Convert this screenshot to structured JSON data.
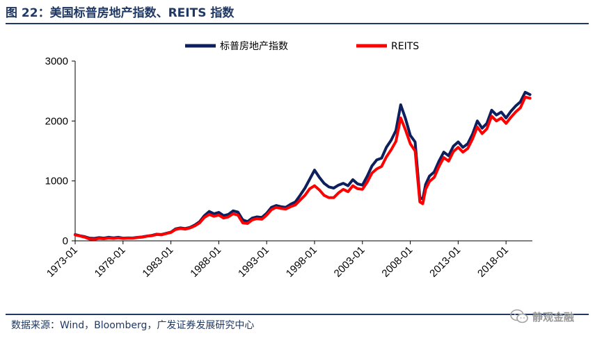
{
  "figure": {
    "title": "图 22：美国标普房地产指数、REITS 指数",
    "source": "数据来源：Wind，Bloomberg，广发证券发展研究中心",
    "watermark": "静观金融"
  },
  "chart_data": {
    "type": "line",
    "title": "",
    "xlabel": "",
    "ylabel": "",
    "ylim": [
      0,
      3000
    ],
    "yticks": [
      "0",
      "1000",
      "2000",
      "3000"
    ],
    "xticks": [
      "1973-01",
      "1978-01",
      "1983-01",
      "1988-01",
      "1993-01",
      "1998-01",
      "2003-01",
      "2008-01",
      "2013-01",
      "2018-01"
    ],
    "x_range": [
      1973.0,
      2020.75
    ],
    "legend_position": "top-center",
    "series": [
      {
        "name": "标普房地产指数",
        "color": "#0d1f5c",
        "points": [
          [
            1973.0,
            105
          ],
          [
            1973.5,
            85
          ],
          [
            1974.0,
            70
          ],
          [
            1974.5,
            45
          ],
          [
            1975.0,
            40
          ],
          [
            1975.5,
            55
          ],
          [
            1976.0,
            45
          ],
          [
            1976.5,
            60
          ],
          [
            1977.0,
            50
          ],
          [
            1977.5,
            60
          ],
          [
            1978.0,
            45
          ],
          [
            1978.5,
            50
          ],
          [
            1979.0,
            48
          ],
          [
            1979.5,
            58
          ],
          [
            1980.0,
            65
          ],
          [
            1980.5,
            80
          ],
          [
            1981.0,
            90
          ],
          [
            1981.5,
            110
          ],
          [
            1982.0,
            105
          ],
          [
            1982.5,
            125
          ],
          [
            1983.0,
            145
          ],
          [
            1983.5,
            200
          ],
          [
            1984.0,
            215
          ],
          [
            1984.5,
            205
          ],
          [
            1985.0,
            225
          ],
          [
            1985.5,
            265
          ],
          [
            1986.0,
            320
          ],
          [
            1986.5,
            420
          ],
          [
            1987.0,
            490
          ],
          [
            1987.5,
            450
          ],
          [
            1988.0,
            475
          ],
          [
            1988.5,
            420
          ],
          [
            1989.0,
            440
          ],
          [
            1989.5,
            500
          ],
          [
            1990.0,
            480
          ],
          [
            1990.5,
            350
          ],
          [
            1991.0,
            320
          ],
          [
            1991.5,
            380
          ],
          [
            1992.0,
            400
          ],
          [
            1992.5,
            390
          ],
          [
            1993.0,
            460
          ],
          [
            1993.5,
            560
          ],
          [
            1994.0,
            590
          ],
          [
            1994.5,
            570
          ],
          [
            1995.0,
            560
          ],
          [
            1995.5,
            610
          ],
          [
            1996.0,
            650
          ],
          [
            1996.5,
            760
          ],
          [
            1997.0,
            880
          ],
          [
            1997.5,
            1030
          ],
          [
            1998.0,
            1180
          ],
          [
            1998.5,
            1060
          ],
          [
            1999.0,
            960
          ],
          [
            1999.5,
            900
          ],
          [
            2000.0,
            880
          ],
          [
            2000.5,
            930
          ],
          [
            2001.0,
            960
          ],
          [
            2001.5,
            920
          ],
          [
            2002.0,
            1020
          ],
          [
            2002.5,
            950
          ],
          [
            2003.0,
            930
          ],
          [
            2003.5,
            1080
          ],
          [
            2004.0,
            1250
          ],
          [
            2004.5,
            1350
          ],
          [
            2005.0,
            1380
          ],
          [
            2005.5,
            1560
          ],
          [
            2006.0,
            1680
          ],
          [
            2006.5,
            1840
          ],
          [
            2007.0,
            2270
          ],
          [
            2007.5,
            2040
          ],
          [
            2008.0,
            1760
          ],
          [
            2008.5,
            1650
          ],
          [
            2009.0,
            720
          ],
          [
            2009.3,
            700
          ],
          [
            2009.6,
            940
          ],
          [
            2010.0,
            1080
          ],
          [
            2010.5,
            1150
          ],
          [
            2011.0,
            1330
          ],
          [
            2011.5,
            1480
          ],
          [
            2012.0,
            1420
          ],
          [
            2012.5,
            1580
          ],
          [
            2013.0,
            1650
          ],
          [
            2013.5,
            1560
          ],
          [
            2014.0,
            1620
          ],
          [
            2014.5,
            1780
          ],
          [
            2015.0,
            2000
          ],
          [
            2015.5,
            1880
          ],
          [
            2016.0,
            1960
          ],
          [
            2016.5,
            2180
          ],
          [
            2017.0,
            2100
          ],
          [
            2017.5,
            2150
          ],
          [
            2018.0,
            2050
          ],
          [
            2018.5,
            2160
          ],
          [
            2019.0,
            2250
          ],
          [
            2019.5,
            2320
          ],
          [
            2020.0,
            2480
          ],
          [
            2020.5,
            2440
          ]
        ]
      },
      {
        "name": "REITS",
        "color": "#ff0000",
        "points": [
          [
            1973.0,
            100
          ],
          [
            1973.5,
            80
          ],
          [
            1974.0,
            60
          ],
          [
            1974.5,
            30
          ],
          [
            1975.0,
            25
          ],
          [
            1975.5,
            40
          ],
          [
            1976.0,
            35
          ],
          [
            1976.5,
            48
          ],
          [
            1977.0,
            40
          ],
          [
            1977.5,
            50
          ],
          [
            1978.0,
            40
          ],
          [
            1978.5,
            45
          ],
          [
            1979.0,
            45
          ],
          [
            1979.5,
            55
          ],
          [
            1980.0,
            60
          ],
          [
            1980.5,
            78
          ],
          [
            1981.0,
            85
          ],
          [
            1981.5,
            105
          ],
          [
            1982.0,
            100
          ],
          [
            1982.5,
            120
          ],
          [
            1983.0,
            140
          ],
          [
            1983.5,
            190
          ],
          [
            1984.0,
            205
          ],
          [
            1984.5,
            195
          ],
          [
            1985.0,
            215
          ],
          [
            1985.5,
            250
          ],
          [
            1986.0,
            300
          ],
          [
            1986.5,
            390
          ],
          [
            1987.0,
            440
          ],
          [
            1987.5,
            410
          ],
          [
            1988.0,
            430
          ],
          [
            1988.5,
            380
          ],
          [
            1989.0,
            400
          ],
          [
            1989.5,
            450
          ],
          [
            1990.0,
            430
          ],
          [
            1990.5,
            300
          ],
          [
            1991.0,
            290
          ],
          [
            1991.5,
            350
          ],
          [
            1992.0,
            370
          ],
          [
            1992.5,
            360
          ],
          [
            1993.0,
            430
          ],
          [
            1993.5,
            520
          ],
          [
            1994.0,
            560
          ],
          [
            1994.5,
            540
          ],
          [
            1995.0,
            530
          ],
          [
            1995.5,
            570
          ],
          [
            1996.0,
            600
          ],
          [
            1996.5,
            680
          ],
          [
            1997.0,
            760
          ],
          [
            1997.5,
            870
          ],
          [
            1998.0,
            920
          ],
          [
            1998.5,
            850
          ],
          [
            1999.0,
            760
          ],
          [
            1999.5,
            720
          ],
          [
            2000.0,
            720
          ],
          [
            2000.5,
            800
          ],
          [
            2001.0,
            860
          ],
          [
            2001.5,
            820
          ],
          [
            2002.0,
            920
          ],
          [
            2002.5,
            870
          ],
          [
            2003.0,
            860
          ],
          [
            2003.5,
            980
          ],
          [
            2004.0,
            1130
          ],
          [
            2004.5,
            1200
          ],
          [
            2005.0,
            1240
          ],
          [
            2005.5,
            1400
          ],
          [
            2006.0,
            1520
          ],
          [
            2006.5,
            1660
          ],
          [
            2007.0,
            2050
          ],
          [
            2007.5,
            1850
          ],
          [
            2008.0,
            1620
          ],
          [
            2008.5,
            1500
          ],
          [
            2009.0,
            650
          ],
          [
            2009.3,
            620
          ],
          [
            2009.6,
            860
          ],
          [
            2010.0,
            990
          ],
          [
            2010.5,
            1060
          ],
          [
            2011.0,
            1240
          ],
          [
            2011.5,
            1390
          ],
          [
            2012.0,
            1330
          ],
          [
            2012.5,
            1490
          ],
          [
            2013.0,
            1560
          ],
          [
            2013.5,
            1480
          ],
          [
            2014.0,
            1540
          ],
          [
            2014.5,
            1700
          ],
          [
            2015.0,
            1900
          ],
          [
            2015.5,
            1790
          ],
          [
            2016.0,
            1870
          ],
          [
            2016.5,
            2080
          ],
          [
            2017.0,
            2000
          ],
          [
            2017.5,
            2050
          ],
          [
            2018.0,
            1960
          ],
          [
            2018.5,
            2060
          ],
          [
            2019.0,
            2150
          ],
          [
            2019.5,
            2220
          ],
          [
            2020.0,
            2400
          ],
          [
            2020.5,
            2380
          ]
        ]
      }
    ]
  }
}
